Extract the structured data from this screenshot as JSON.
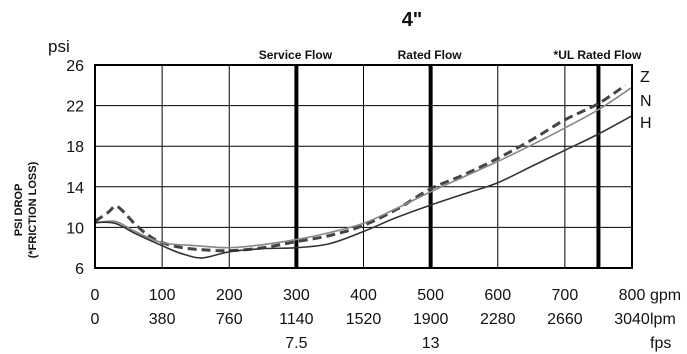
{
  "chart_data": {
    "type": "line",
    "title": "4\"",
    "ylabel_unit": "psi",
    "ylabel": [
      "PSI DROP",
      "(*FRICTION LOSS)"
    ],
    "y_ticks": [
      "26",
      "22",
      "18",
      "14",
      "10",
      "6"
    ],
    "ylim": [
      6,
      26
    ],
    "xlim": [
      0,
      800
    ],
    "grid": true,
    "x_scales": [
      {
        "unit": "gpm",
        "ticks": [
          "0",
          "100",
          "200",
          "300",
          "400",
          "500",
          "600",
          "700",
          "800"
        ]
      },
      {
        "unit": "lpm",
        "ticks": [
          "0",
          "380",
          "760",
          "1140",
          "1520",
          "1900",
          "2280",
          "2660",
          "3040"
        ]
      },
      {
        "unit": "fps",
        "ticks": [
          "7.5",
          "13"
        ],
        "at_gpm": [
          300,
          500
        ]
      }
    ],
    "markers": [
      {
        "label": "Service Flow",
        "gpm": 300
      },
      {
        "label": "Rated Flow",
        "gpm": 500
      },
      {
        "label": "*UL Rated Flow",
        "gpm": 750
      }
    ],
    "series": [
      {
        "name": "Z",
        "style": "dashed",
        "color": "#444444",
        "x": [
          0,
          20,
          30,
          40,
          60,
          80,
          100,
          130,
          160,
          200,
          250,
          300,
          350,
          400,
          450,
          500,
          550,
          600,
          650,
          700,
          750,
          790
        ],
        "y": [
          10.6,
          11.5,
          12.1,
          11.7,
          10.3,
          9.2,
          8.5,
          8.0,
          7.8,
          7.7,
          8.0,
          8.6,
          9.2,
          10.2,
          11.8,
          13.8,
          15.2,
          16.8,
          18.6,
          20.6,
          22.2,
          24.0
        ]
      },
      {
        "name": "N",
        "style": "solid",
        "color": "#888888",
        "x": [
          0,
          30,
          60,
          100,
          150,
          200,
          250,
          300,
          350,
          400,
          450,
          500,
          550,
          600,
          650,
          700,
          750,
          800
        ],
        "y": [
          10.4,
          10.6,
          9.6,
          8.5,
          8.2,
          8.0,
          8.3,
          8.8,
          9.5,
          10.4,
          11.9,
          13.5,
          15.0,
          16.5,
          18.1,
          19.8,
          21.6,
          23.8
        ]
      },
      {
        "name": "H",
        "style": "solid",
        "color": "#333333",
        "x": [
          0,
          30,
          60,
          100,
          130,
          160,
          200,
          250,
          300,
          350,
          400,
          450,
          500,
          550,
          600,
          650,
          700,
          750,
          800
        ],
        "y": [
          10.5,
          10.4,
          9.4,
          8.2,
          7.4,
          7.0,
          7.6,
          7.9,
          8.0,
          8.4,
          9.6,
          11.0,
          12.2,
          13.3,
          14.4,
          16.0,
          17.6,
          19.2,
          21.0
        ]
      }
    ]
  }
}
